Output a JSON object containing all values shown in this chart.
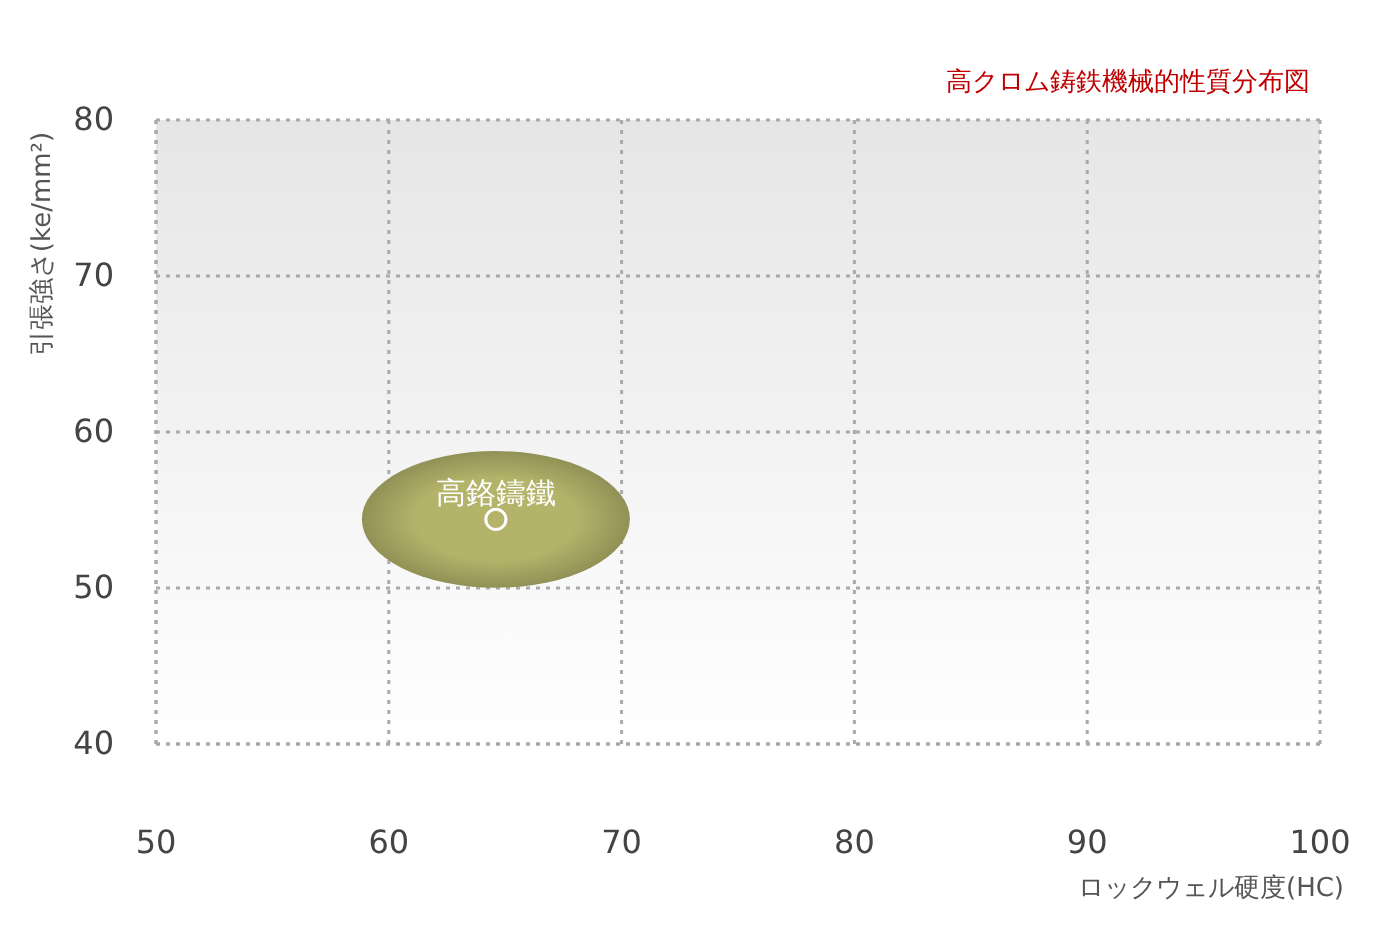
{
  "chart_data": {
    "type": "scatter",
    "marker": "circle",
    "title": "高クロム鋳鉄機械的性質分布図",
    "xlabel": "ロックウェル硬度(HC)",
    "ylabel": "引張強さ(ke/mm²)",
    "xlim": [
      50,
      100
    ],
    "xticks": [
      50,
      60,
      70,
      80,
      90,
      100
    ],
    "ylim": [
      40,
      80
    ],
    "yticks": [
      40,
      50,
      60,
      70,
      80
    ],
    "grid": true,
    "series": [
      {
        "name": "高鉻鑄鐵",
        "color": "#b3b36a",
        "x": [
          64.6
        ],
        "values": [
          54.4
        ]
      }
    ]
  }
}
